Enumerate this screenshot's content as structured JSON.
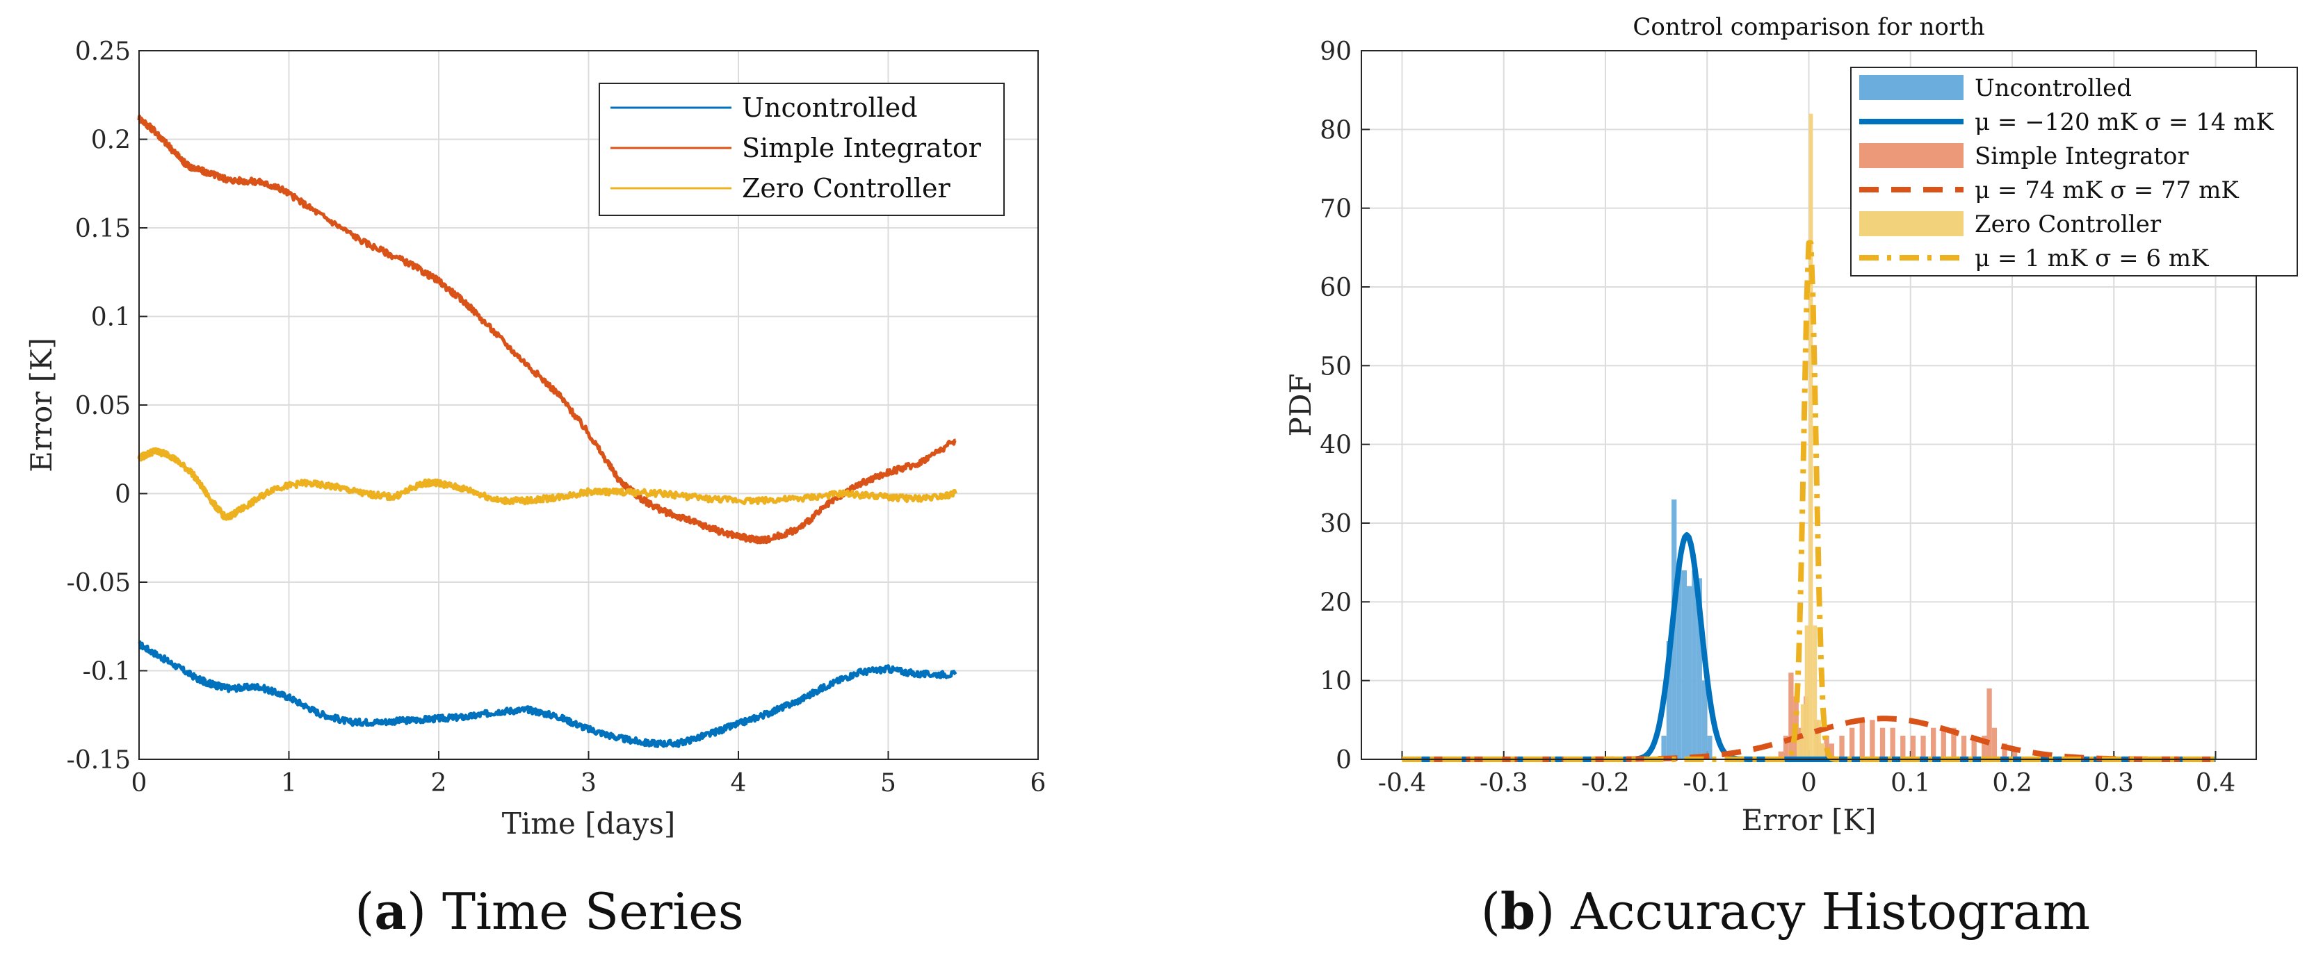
{
  "colors": {
    "uncontrolled": "#0072BD",
    "simple": "#D95319",
    "zero": "#EDB120",
    "uncontrolled_fill": "#6BAEDD",
    "simple_fill": "#EB9979",
    "zero_fill": "#F3D27C"
  },
  "captions": {
    "a_letter": "a",
    "a_text": "Time Series",
    "b_letter": "b",
    "b_text": "Accuracy Histogram"
  },
  "chart_data": [
    {
      "id": "a",
      "type": "line",
      "title": "",
      "xlabel": "Time [days]",
      "ylabel": "Error [K]",
      "xlim": [
        0,
        6
      ],
      "ylim": [
        -0.15,
        0.25
      ],
      "xticks": [
        0,
        1,
        2,
        3,
        4,
        5,
        6
      ],
      "xtick_labels": [
        "0",
        "1",
        "2",
        "3",
        "4",
        "5",
        "6"
      ],
      "yticks": [
        -0.15,
        -0.1,
        -0.05,
        0,
        0.05,
        0.1,
        0.15,
        0.2,
        0.25
      ],
      "ytick_labels": [
        "-0.15",
        "-0.1",
        "-0.05",
        "0",
        "0.05",
        "0.1",
        "0.15",
        "0.2",
        "0.25"
      ],
      "grid": true,
      "legend_position": "top-right",
      "series": [
        {
          "name": "Uncontrolled",
          "color": "uncontrolled",
          "x": [
            0,
            0.2,
            0.4,
            0.5,
            0.6,
            0.8,
            1.0,
            1.2,
            1.4,
            1.6,
            1.8,
            2.0,
            2.2,
            2.4,
            2.6,
            2.8,
            3.0,
            3.2,
            3.4,
            3.6,
            3.8,
            4.0,
            4.2,
            4.4,
            4.6,
            4.8,
            5.0,
            5.2,
            5.45
          ],
          "values": [
            -0.085,
            -0.095,
            -0.105,
            -0.108,
            -0.11,
            -0.109,
            -0.115,
            -0.124,
            -0.129,
            -0.129,
            -0.128,
            -0.127,
            -0.126,
            -0.123,
            -0.122,
            -0.126,
            -0.133,
            -0.138,
            -0.141,
            -0.141,
            -0.136,
            -0.13,
            -0.124,
            -0.117,
            -0.108,
            -0.101,
            -0.099,
            -0.102,
            -0.102
          ]
        },
        {
          "name": "Simple Integrator",
          "color": "simple",
          "x": [
            0,
            0.1,
            0.2,
            0.3,
            0.35,
            0.5,
            0.6,
            0.8,
            0.95,
            1.2,
            1.5,
            1.8,
            2.0,
            2.2,
            2.5,
            2.8,
            3.0,
            3.2,
            3.35,
            3.5,
            3.7,
            3.9,
            4.1,
            4.2,
            4.4,
            4.6,
            4.8,
            5.0,
            5.2,
            5.45
          ],
          "values": [
            0.212,
            0.205,
            0.196,
            0.187,
            0.184,
            0.18,
            0.177,
            0.176,
            0.172,
            0.158,
            0.142,
            0.13,
            0.12,
            0.106,
            0.08,
            0.056,
            0.034,
            0.008,
            -0.003,
            -0.01,
            -0.016,
            -0.022,
            -0.026,
            -0.026,
            -0.02,
            -0.006,
            0.005,
            0.012,
            0.017,
            0.03
          ]
        },
        {
          "name": "Zero Controller",
          "color": "zero",
          "x": [
            0,
            0.1,
            0.2,
            0.35,
            0.5,
            0.58,
            0.7,
            0.9,
            1.1,
            1.3,
            1.5,
            1.7,
            1.9,
            2.0,
            2.2,
            2.4,
            2.6,
            2.8,
            3.0,
            3.2,
            3.5,
            3.8,
            4.1,
            4.4,
            4.7,
            5.0,
            5.2,
            5.45
          ],
          "values": [
            0.02,
            0.024,
            0.022,
            0.012,
            -0.006,
            -0.014,
            -0.008,
            0.003,
            0.006,
            0.004,
            0.0,
            -0.002,
            0.006,
            0.006,
            0.002,
            -0.004,
            -0.004,
            -0.002,
            0.001,
            0.001,
            0.0,
            -0.003,
            -0.004,
            -0.003,
            0.0,
            -0.002,
            -0.003,
            0.0
          ]
        }
      ]
    },
    {
      "id": "b",
      "type": "bar",
      "title": "Control comparison for north",
      "xlabel": "Error [K]",
      "ylabel": "PDF",
      "xlim": [
        -0.44,
        0.44
      ],
      "ylim": [
        0,
        90
      ],
      "xticks": [
        -0.4,
        -0.3,
        -0.2,
        -0.1,
        0,
        0.1,
        0.2,
        0.3,
        0.4
      ],
      "xtick_labels": [
        "-0.4",
        "-0.3",
        "-0.2",
        "-0.1",
        "0",
        "0.1",
        "0.2",
        "0.3",
        "0.4"
      ],
      "yticks": [
        0,
        10,
        20,
        30,
        40,
        50,
        60,
        70,
        80,
        90
      ],
      "ytick_labels": [
        "0",
        "10",
        "20",
        "30",
        "40",
        "50",
        "60",
        "70",
        "80",
        "90"
      ],
      "grid": true,
      "legend_position": "top-right",
      "legend": [
        {
          "label": "Uncontrolled",
          "kind": "patch",
          "color": "uncontrolled_fill"
        },
        {
          "label": "μ = −120 mK σ = 14 mK",
          "kind": "solid",
          "color": "uncontrolled"
        },
        {
          "label": "Simple Integrator",
          "kind": "patch",
          "color": "simple_fill"
        },
        {
          "label": "μ = 74 mK σ = 77 mK",
          "kind": "dashed",
          "color": "simple"
        },
        {
          "label": "Zero Controller",
          "kind": "patch",
          "color": "zero_fill"
        },
        {
          "label": "μ = 1 mK σ = 6 mK",
          "kind": "dashdot",
          "color": "zero"
        }
      ],
      "histograms": [
        {
          "name": "Uncontrolled",
          "color": "uncontrolled_fill",
          "bin_width": 0.005,
          "bins": [
            -0.145,
            -0.14,
            -0.135,
            -0.13,
            -0.125,
            -0.12,
            -0.115,
            -0.11,
            -0.105,
            -0.1
          ],
          "values": [
            3,
            15,
            33,
            25,
            24,
            22,
            24,
            23,
            10,
            3
          ]
        },
        {
          "name": "Simple Integrator",
          "color": "simple_fill",
          "bin_width": 0.005,
          "bins": [
            -0.03,
            -0.025,
            -0.02,
            -0.015,
            -0.01,
            -0.005,
            0.005,
            0.01,
            0.015,
            0.02,
            0.03,
            0.04,
            0.05,
            0.06,
            0.07,
            0.08,
            0.09,
            0.1,
            0.11,
            0.12,
            0.13,
            0.14,
            0.15,
            0.16,
            0.17,
            0.175,
            0.18,
            0.19,
            0.2
          ],
          "values": [
            1,
            3,
            11,
            8,
            4,
            8,
            5,
            2,
            3,
            2,
            3,
            4,
            5,
            5,
            4,
            4,
            3,
            3,
            3,
            4,
            4,
            4,
            3,
            3,
            3,
            9,
            4,
            2,
            1
          ]
        },
        {
          "name": "Zero Controller",
          "color": "zero_fill",
          "bin_width": 0.004,
          "bins": [
            -0.012,
            -0.008,
            -0.004,
            0.0,
            0.004,
            0.008,
            0.012
          ],
          "values": [
            3,
            7,
            17,
            82,
            17,
            5,
            2
          ]
        }
      ],
      "fits": [
        {
          "name": "μ = −120 mK σ = 14 mK",
          "mu": -0.12,
          "sigma": 0.014,
          "color": "uncontrolled",
          "style": "solid"
        },
        {
          "name": "μ = 74 mK σ = 77 mK",
          "mu": 0.074,
          "sigma": 0.077,
          "color": "simple",
          "style": "dashed"
        },
        {
          "name": "μ = 1 mK σ = 6 mK",
          "mu": 0.001,
          "sigma": 0.006,
          "color": "zero",
          "style": "dashdot"
        }
      ]
    }
  ]
}
